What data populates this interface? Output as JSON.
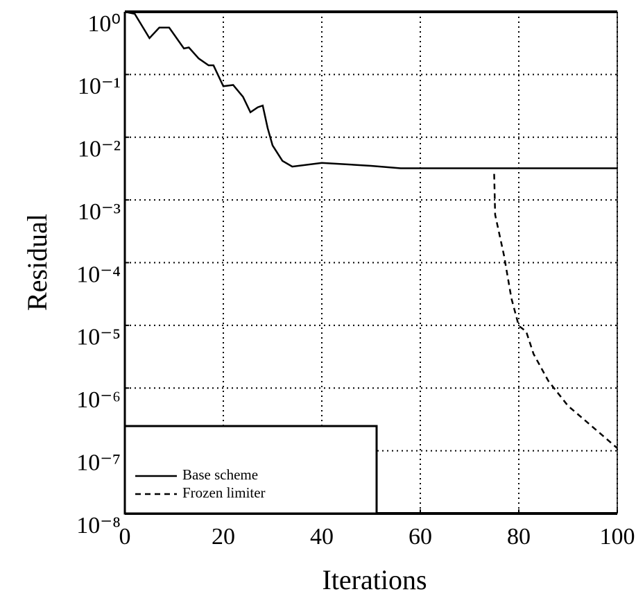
{
  "chart_data": {
    "type": "line",
    "xlabel": "Iterations",
    "ylabel": "Residual",
    "xlim": [
      0,
      100
    ],
    "xticks": [
      0,
      20,
      40,
      60,
      80,
      100
    ],
    "ylim": [
      1e-08,
      1
    ],
    "log_y": true,
    "yticks": [
      {
        "value": 1,
        "label": "10⁰"
      },
      {
        "value": 0.1,
        "label": "10⁻¹"
      },
      {
        "value": 0.01,
        "label": "10⁻²"
      },
      {
        "value": 0.001,
        "label": "10⁻³"
      },
      {
        "value": 0.0001,
        "label": "10⁻⁴"
      },
      {
        "value": 1e-05,
        "label": "10⁻⁵"
      },
      {
        "value": 1e-06,
        "label": "10⁻⁶"
      },
      {
        "value": 1e-07,
        "label": "10⁻⁷"
      },
      {
        "value": 1e-08,
        "label": "10⁻⁸"
      }
    ],
    "grid": true,
    "legend": "lower left",
    "series": [
      {
        "name": "Base scheme",
        "color": "#000000",
        "dashed": false,
        "x": [
          0,
          2,
          5,
          7,
          9,
          12,
          13,
          15,
          17,
          18,
          20,
          22,
          24,
          25.5,
          27,
          28,
          29,
          30,
          32,
          34,
          40,
          50,
          56,
          100
        ],
        "values": [
          1,
          0.93,
          0.38,
          0.56,
          0.56,
          0.26,
          0.27,
          0.18,
          0.14,
          0.14,
          0.065,
          0.068,
          0.044,
          0.025,
          0.03,
          0.032,
          0.014,
          0.0074,
          0.0042,
          0.0034,
          0.0039,
          0.0035,
          0.0032,
          0.0032
        ]
      },
      {
        "name": "Frozen limiter",
        "color": "#000000",
        "dashed": true,
        "x": [
          75,
          75.2,
          77,
          78.5,
          80,
          81.5,
          83,
          86,
          90,
          95,
          100
        ],
        "values": [
          0.0026,
          0.00058,
          0.00013,
          2.7e-05,
          9.8e-06,
          8e-06,
          3.5e-06,
          1.3e-06,
          5.2e-07,
          2.4e-07,
          1.1e-07
        ]
      }
    ]
  }
}
